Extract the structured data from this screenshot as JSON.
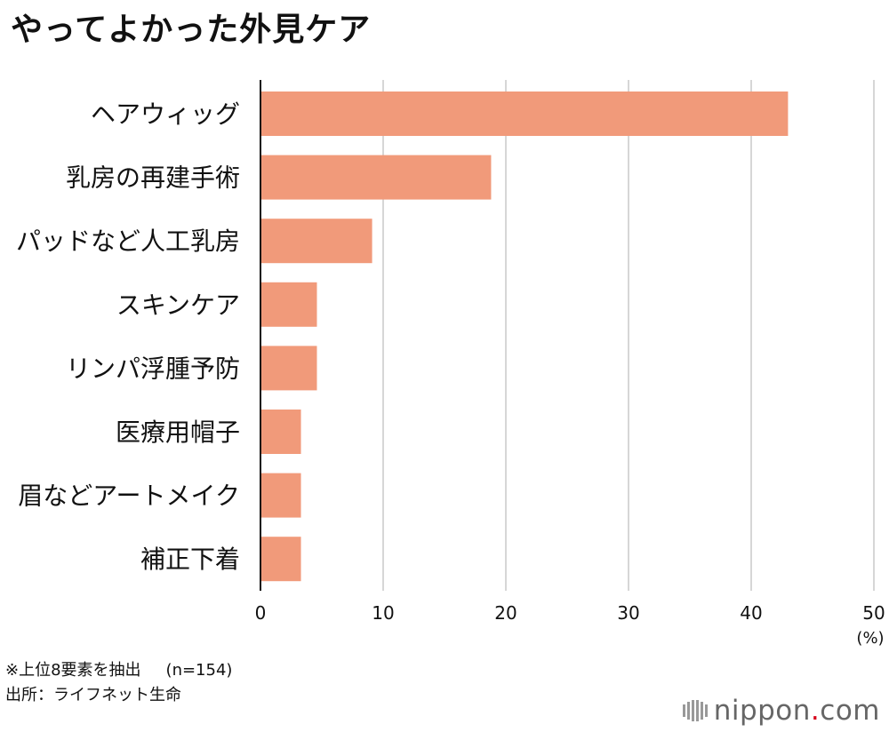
{
  "title": "やってよかった外見ケア",
  "chart_data": {
    "type": "bar",
    "orientation": "horizontal",
    "title": "やってよかった外見ケア",
    "categories": [
      "ヘアウィッグ",
      "乳房の再建手術",
      "パッドなど人工乳房",
      "スキンケア",
      "リンパ浮腫予防",
      "医療用帽子",
      "眉などアートメイク",
      "補正下着"
    ],
    "values": [
      43,
      18.8,
      9.1,
      4.6,
      4.6,
      3.3,
      3.3,
      3.3
    ],
    "xlim": [
      0,
      50
    ],
    "xticks": [
      0,
      10,
      20,
      30,
      40,
      50
    ],
    "xlabel": "",
    "unit": "(%)",
    "grid": true,
    "bar_color": "#f19a7a"
  },
  "footer": {
    "note": "※上位8要素を抽出",
    "sample": "(n=154)",
    "source": "出所：ライフネット生命"
  },
  "logo": {
    "name": "nippon",
    "dot": ".",
    "tld": "com"
  }
}
